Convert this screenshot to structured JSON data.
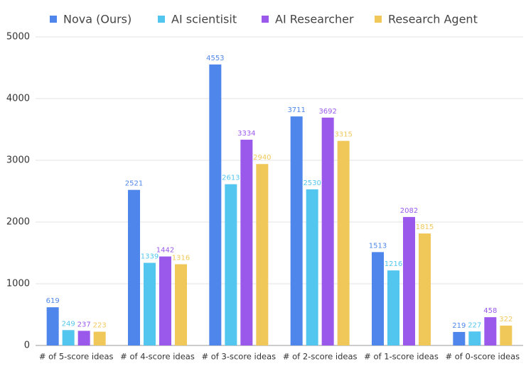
{
  "chart_data": {
    "type": "bar",
    "categories": [
      "# of 5-score ideas",
      "# of 4-score ideas",
      "# of 3-score ideas",
      "# of 2-score ideas",
      "# of 1-score ideas",
      "# of 0-score ideas"
    ],
    "series": [
      {
        "name": "Nova (Ours)",
        "color": "#4f86ec",
        "values": [
          619,
          2521,
          4553,
          3711,
          1513,
          219
        ]
      },
      {
        "name": "AI scientisit",
        "color": "#52c6ee",
        "values": [
          249,
          1339,
          2613,
          2530,
          1216,
          227
        ]
      },
      {
        "name": "AI Researcher",
        "color": "#9b59ec",
        "values": [
          237,
          1442,
          3334,
          3692,
          2082,
          458
        ]
      },
      {
        "name": "Research Agent",
        "color": "#f0c85a",
        "values": [
          223,
          1316,
          2940,
          3315,
          1815,
          322
        ]
      }
    ],
    "ylim": [
      0,
      5000
    ],
    "yticks": [
      0,
      1000,
      2000,
      3000,
      4000,
      5000
    ],
    "grid": true,
    "legend": "top"
  }
}
